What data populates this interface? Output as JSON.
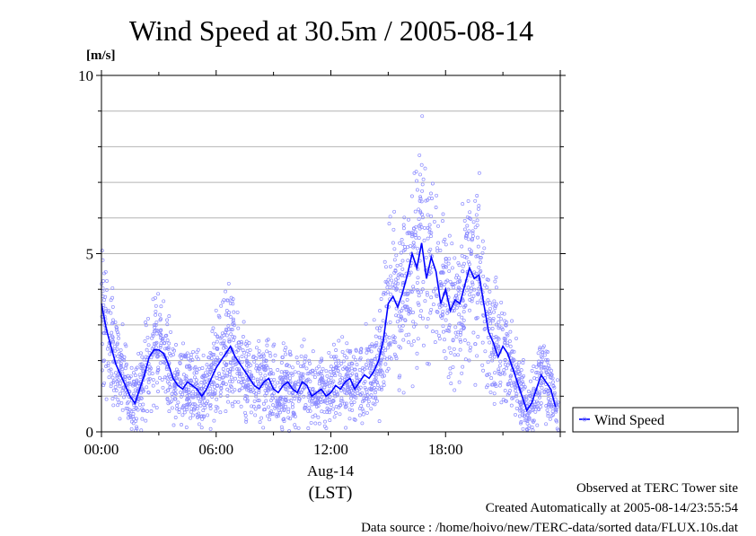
{
  "chart_data": {
    "type": "line",
    "title": "Wind Speed at 30.5m / 2005-08-14",
    "ylabel": "[m/s]",
    "xlabel": "(LST)",
    "date_label": "Aug-14",
    "ylim": [
      0,
      10
    ],
    "xlim": [
      0,
      24
    ],
    "x_tick_labels": [
      "00:00",
      "06:00",
      "12:00",
      "18:00"
    ],
    "y_tick_labels": [
      "0",
      "5",
      "10"
    ],
    "grid": true,
    "legend_position": "right",
    "colors": {
      "line": "#0000ff",
      "points": "#8c8cff",
      "grid": "#b4b4b4"
    },
    "series": [
      {
        "name": "Wind Speed",
        "x": [
          0.0,
          0.25,
          0.5,
          0.75,
          1.0,
          1.25,
          1.5,
          1.75,
          2.0,
          2.25,
          2.5,
          2.75,
          3.0,
          3.25,
          3.5,
          3.75,
          4.0,
          4.25,
          4.5,
          4.75,
          5.0,
          5.25,
          5.5,
          5.75,
          6.0,
          6.25,
          6.5,
          6.75,
          7.0,
          7.25,
          7.5,
          7.75,
          8.0,
          8.25,
          8.5,
          8.75,
          9.0,
          9.25,
          9.5,
          9.75,
          10.0,
          10.25,
          10.5,
          10.75,
          11.0,
          11.25,
          11.5,
          11.75,
          12.0,
          12.25,
          12.5,
          12.75,
          13.0,
          13.25,
          13.5,
          13.75,
          14.0,
          14.25,
          14.5,
          14.75,
          15.0,
          15.25,
          15.5,
          15.75,
          16.0,
          16.25,
          16.5,
          16.75,
          17.0,
          17.25,
          17.5,
          17.75,
          18.0,
          18.25,
          18.5,
          18.75,
          19.0,
          19.25,
          19.5,
          19.75,
          20.0,
          20.25,
          20.5,
          20.75,
          21.0,
          21.25,
          21.5,
          21.75,
          22.0,
          22.25,
          22.5,
          22.75,
          23.0,
          23.25,
          23.5,
          23.75
        ],
        "y": [
          3.6,
          2.9,
          2.4,
          1.9,
          1.6,
          1.3,
          1.0,
          0.8,
          1.2,
          1.6,
          2.1,
          2.3,
          2.3,
          2.2,
          1.9,
          1.5,
          1.3,
          1.2,
          1.4,
          1.3,
          1.2,
          1.0,
          1.2,
          1.5,
          1.8,
          2.0,
          2.2,
          2.4,
          2.1,
          1.9,
          1.7,
          1.5,
          1.3,
          1.2,
          1.4,
          1.5,
          1.2,
          1.1,
          1.3,
          1.4,
          1.2,
          1.1,
          1.4,
          1.3,
          1.0,
          1.1,
          1.2,
          1.0,
          1.1,
          1.3,
          1.2,
          1.4,
          1.5,
          1.2,
          1.4,
          1.6,
          1.5,
          1.7,
          2.0,
          2.6,
          3.6,
          3.8,
          3.5,
          3.9,
          4.4,
          5.0,
          4.6,
          5.3,
          4.3,
          4.9,
          4.5,
          3.6,
          4.0,
          3.4,
          3.7,
          3.6,
          4.1,
          4.6,
          4.3,
          4.4,
          3.6,
          2.8,
          2.5,
          2.1,
          2.4,
          2.2,
          1.8,
          1.4,
          1.0,
          0.6,
          0.8,
          1.2,
          1.6,
          1.4,
          1.2,
          0.7
        ]
      }
    ]
  },
  "footer": {
    "site": "Observed at TERC Tower site",
    "created": "Created Automatically at 2005-08-14/23:55:54",
    "source": "Data source : /home/hoivo/new/TERC-data/sorted data/FLUX.10s.dat"
  }
}
